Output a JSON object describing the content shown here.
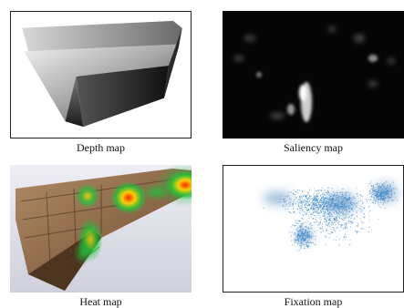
{
  "panels": [
    {
      "id": "depth",
      "caption": "Depth map"
    },
    {
      "id": "saliency",
      "caption": "Saliency map"
    },
    {
      "id": "heat",
      "caption": "Heat map"
    },
    {
      "id": "fixation",
      "caption": "Fixation map"
    }
  ],
  "colors": {
    "fixation_points": "#3a86c8",
    "heat_hot": "#ff2a00",
    "heat_warm": "#ffd400",
    "heat_cool": "#1fbf3a"
  }
}
